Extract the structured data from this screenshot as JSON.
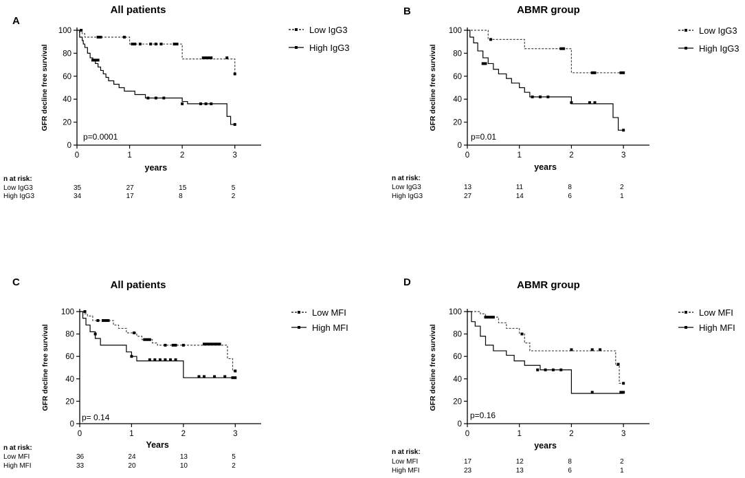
{
  "chart_data": [
    {
      "panel": "A",
      "type": "line",
      "title": "All patients",
      "xlabel": "years",
      "ylabel": "GFR decline free survival",
      "xlim": [
        0,
        3.5
      ],
      "ylim": [
        0,
        100
      ],
      "xticks": [
        "0",
        "1",
        "2",
        "3"
      ],
      "yticks": [
        "0",
        "20",
        "40",
        "60",
        "80",
        "100"
      ],
      "pvalue": "p=0.0001",
      "series": [
        {
          "name": "Low IgG3",
          "style": "dashed",
          "x": [
            0,
            0.05,
            0.1,
            0.15,
            0.9,
            1.0,
            2.0,
            2.95,
            3.0
          ],
          "y": [
            100,
            98,
            97,
            94,
            94,
            88,
            75,
            75,
            62
          ],
          "censored": [
            [
              0.08,
              100
            ],
            [
              0.4,
              94
            ],
            [
              0.45,
              94
            ],
            [
              0.9,
              94
            ],
            [
              1.05,
              88
            ],
            [
              1.1,
              88
            ],
            [
              1.2,
              88
            ],
            [
              1.4,
              88
            ],
            [
              1.5,
              88
            ],
            [
              1.6,
              88
            ],
            [
              1.85,
              88
            ],
            [
              1.9,
              88
            ],
            [
              2.4,
              76
            ],
            [
              2.45,
              76
            ],
            [
              2.5,
              76
            ],
            [
              2.55,
              76
            ],
            [
              2.85,
              76
            ],
            [
              3.0,
              62
            ]
          ]
        },
        {
          "name": "High IgG3",
          "style": "solid",
          "x": [
            0,
            0.05,
            0.1,
            0.12,
            0.15,
            0.2,
            0.25,
            0.3,
            0.35,
            0.4,
            0.45,
            0.5,
            0.55,
            0.6,
            0.7,
            0.8,
            0.9,
            1.0,
            1.1,
            1.2,
            1.3,
            1.5,
            2.0,
            2.1,
            2.85,
            2.92,
            3.0
          ],
          "y": [
            100,
            94,
            91,
            88,
            85,
            80,
            76,
            74,
            71,
            68,
            65,
            62,
            59,
            56,
            53,
            50,
            47,
            47,
            44,
            44,
            41,
            41,
            38,
            36,
            25,
            18,
            18
          ],
          "censored": [
            [
              0.3,
              74
            ],
            [
              0.35,
              74
            ],
            [
              0.4,
              74
            ],
            [
              1.35,
              41
            ],
            [
              1.5,
              41
            ],
            [
              1.65,
              41
            ],
            [
              2.0,
              36
            ],
            [
              2.35,
              36
            ],
            [
              2.45,
              36
            ],
            [
              2.55,
              36
            ],
            [
              3.0,
              18
            ]
          ]
        }
      ],
      "risk_table": {
        "header": "n at risk:",
        "times": [
          0,
          1,
          2,
          3
        ],
        "rows": [
          {
            "label": "Low IgG3",
            "values": [
              "35",
              "27",
              "15",
              "5"
            ]
          },
          {
            "label": "High IgG3",
            "values": [
              "34",
              "17",
              "8",
              "2"
            ]
          }
        ]
      }
    },
    {
      "panel": "B",
      "type": "line",
      "title": "ABMR group",
      "xlabel": "years",
      "ylabel": "GFR decline free survival",
      "xlim": [
        0,
        3.5
      ],
      "ylim": [
        0,
        100
      ],
      "xticks": [
        "0",
        "1",
        "2",
        "3"
      ],
      "yticks": [
        "0",
        "20",
        "40",
        "60",
        "80",
        "100"
      ],
      "pvalue": "p=0.01",
      "series": [
        {
          "name": "Low IgG3",
          "style": "dashed",
          "x": [
            0,
            0.3,
            0.4,
            1.0,
            1.1,
            2.0,
            3.0
          ],
          "y": [
            100,
            100,
            92,
            92,
            84,
            63,
            63
          ],
          "censored": [
            [
              0.45,
              92
            ],
            [
              1.8,
              84
            ],
            [
              1.85,
              84
            ],
            [
              2.4,
              63
            ],
            [
              2.45,
              63
            ],
            [
              2.95,
              63
            ],
            [
              3.0,
              63
            ]
          ]
        },
        {
          "name": "High IgG3",
          "style": "solid",
          "x": [
            0,
            0.05,
            0.12,
            0.2,
            0.3,
            0.4,
            0.5,
            0.6,
            0.75,
            0.85,
            1.0,
            1.1,
            1.2,
            2.0,
            2.8,
            2.9,
            3.0
          ],
          "y": [
            100,
            94,
            89,
            82,
            76,
            71,
            66,
            62,
            58,
            54,
            50,
            46,
            42,
            36,
            24,
            13,
            13
          ],
          "censored": [
            [
              0.3,
              71
            ],
            [
              0.35,
              71
            ],
            [
              1.25,
              42
            ],
            [
              1.4,
              42
            ],
            [
              1.55,
              42
            ],
            [
              2.0,
              37
            ],
            [
              2.35,
              37
            ],
            [
              2.45,
              37
            ],
            [
              3.0,
              13
            ]
          ]
        }
      ],
      "risk_table": {
        "header": "n at risk:",
        "times": [
          0,
          1,
          2,
          3
        ],
        "rows": [
          {
            "label": "Low IgG3",
            "values": [
              "13",
              "11",
              "8",
              "2"
            ]
          },
          {
            "label": "High IgG3",
            "values": [
              "27",
              "14",
              "6",
              "1"
            ]
          }
        ]
      }
    },
    {
      "panel": "C",
      "type": "line",
      "title": "All patients",
      "xlabel": "Years",
      "ylabel": "GFR decline free survival",
      "xlim": [
        0,
        3.5
      ],
      "ylim": [
        0,
        100
      ],
      "xticks": [
        "0",
        "1",
        "2",
        "3"
      ],
      "yticks": [
        "0",
        "20",
        "40",
        "60",
        "80",
        "100"
      ],
      "pvalue": "p= 0.14",
      "series": [
        {
          "name": "Low MFI",
          "style": "dashed",
          "x": [
            0,
            0.08,
            0.15,
            0.25,
            0.65,
            0.75,
            0.9,
            1.0,
            1.1,
            1.2,
            1.4,
            1.5,
            2.0,
            2.85,
            2.95,
            3.0
          ],
          "y": [
            100,
            98,
            96,
            92,
            88,
            85,
            81,
            81,
            78,
            75,
            72,
            70,
            70,
            58,
            47,
            47
          ],
          "censored": [
            [
              0.1,
              100
            ],
            [
              0.35,
              92
            ],
            [
              0.45,
              92
            ],
            [
              0.5,
              92
            ],
            [
              0.55,
              92
            ],
            [
              1.05,
              81
            ],
            [
              1.25,
              75
            ],
            [
              1.3,
              75
            ],
            [
              1.35,
              75
            ],
            [
              1.65,
              70
            ],
            [
              1.8,
              70
            ],
            [
              1.85,
              70
            ],
            [
              2.0,
              70
            ],
            [
              2.4,
              71
            ],
            [
              2.45,
              71
            ],
            [
              2.5,
              71
            ],
            [
              2.55,
              71
            ],
            [
              2.6,
              71
            ],
            [
              2.65,
              71
            ],
            [
              2.7,
              71
            ],
            [
              3.0,
              47
            ]
          ]
        },
        {
          "name": "High MFI",
          "style": "solid",
          "x": [
            0,
            0.06,
            0.12,
            0.2,
            0.3,
            0.4,
            0.6,
            0.9,
            1.0,
            1.1,
            1.5,
            2.0,
            2.95,
            3.0
          ],
          "y": [
            100,
            94,
            88,
            82,
            76,
            70,
            70,
            64,
            60,
            56,
            56,
            41,
            41,
            41
          ],
          "censored": [
            [
              0.3,
              80
            ],
            [
              1.0,
              60
            ],
            [
              1.35,
              57
            ],
            [
              1.45,
              57
            ],
            [
              1.55,
              57
            ],
            [
              1.65,
              57
            ],
            [
              1.75,
              57
            ],
            [
              1.85,
              57
            ],
            [
              2.3,
              42
            ],
            [
              2.4,
              42
            ],
            [
              2.6,
              42
            ],
            [
              2.8,
              42
            ],
            [
              2.95,
              41
            ],
            [
              3.0,
              41
            ]
          ]
        }
      ],
      "risk_table": {
        "header": "n at risk:",
        "times": [
          0,
          1,
          2,
          3
        ],
        "rows": [
          {
            "label": "Low MFI",
            "values": [
              "36",
              "24",
              "13",
              "5"
            ]
          },
          {
            "label": "High MFI",
            "values": [
              "33",
              "20",
              "10",
              "2"
            ]
          }
        ]
      }
    },
    {
      "panel": "D",
      "type": "line",
      "title": "ABMR group",
      "xlabel": "years",
      "ylabel": "GFR decline free survival",
      "xlim": [
        0,
        3.5
      ],
      "ylim": [
        0,
        100
      ],
      "xticks": [
        "0",
        "1",
        "2",
        "3"
      ],
      "yticks": [
        "0",
        "20",
        "40",
        "60",
        "80",
        "100"
      ],
      "pvalue": "p=0.16",
      "series": [
        {
          "name": "Low MFI",
          "style": "dashed",
          "x": [
            0,
            0.15,
            0.25,
            0.35,
            0.6,
            0.75,
            1.0,
            1.1,
            1.2,
            2.0,
            2.85,
            2.92,
            3.0
          ],
          "y": [
            100,
            100,
            98,
            95,
            90,
            85,
            80,
            72,
            65,
            65,
            52,
            36,
            36
          ],
          "censored": [
            [
              0.35,
              95
            ],
            [
              0.4,
              95
            ],
            [
              0.45,
              95
            ],
            [
              0.5,
              95
            ],
            [
              1.05,
              80
            ],
            [
              2.0,
              66
            ],
            [
              2.4,
              66
            ],
            [
              2.55,
              66
            ],
            [
              2.9,
              53
            ],
            [
              3.0,
              36
            ]
          ]
        },
        {
          "name": "High MFI",
          "style": "solid",
          "x": [
            0,
            0.08,
            0.15,
            0.25,
            0.35,
            0.5,
            0.75,
            0.9,
            1.1,
            1.4,
            1.65,
            2.0,
            3.0
          ],
          "y": [
            100,
            91,
            87,
            78,
            70,
            65,
            61,
            56,
            52,
            48,
            48,
            27,
            27
          ],
          "censored": [
            [
              1.35,
              48
            ],
            [
              1.5,
              48
            ],
            [
              1.65,
              48
            ],
            [
              1.8,
              48
            ],
            [
              2.4,
              28
            ],
            [
              2.95,
              28
            ],
            [
              3.0,
              28
            ]
          ]
        }
      ],
      "risk_table": {
        "header": "n at risk:",
        "times": [
          0,
          1,
          2,
          3
        ],
        "rows": [
          {
            "label": "Low MFI",
            "values": [
              "17",
              "12",
              "8",
              "2"
            ]
          },
          {
            "label": "High MFI",
            "values": [
              "23",
              "13",
              "6",
              "1"
            ]
          }
        ]
      }
    }
  ]
}
